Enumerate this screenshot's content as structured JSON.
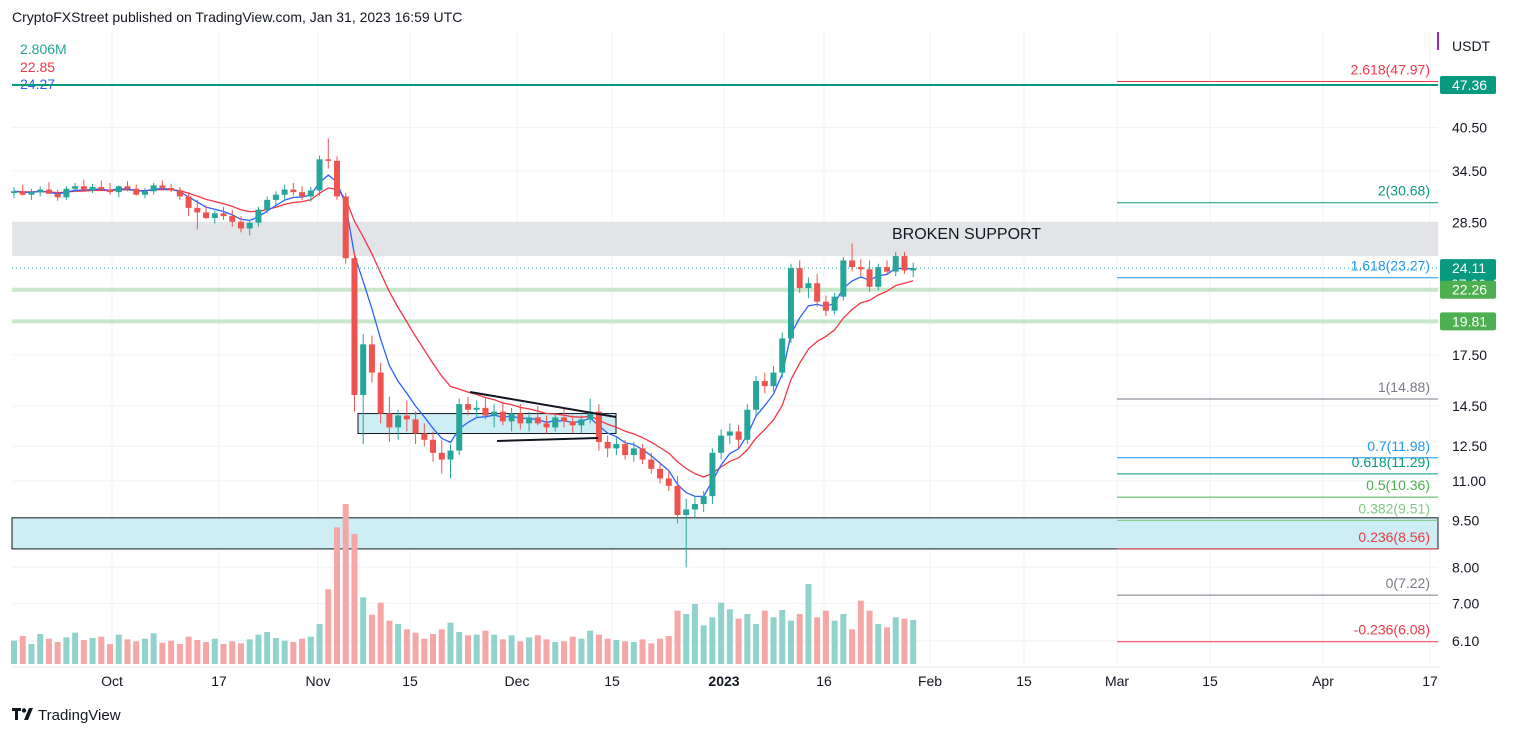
{
  "header": {
    "publisher": "CryptoFXStreet published on TradingView.com, Jan 31, 2023 16:59 UTC"
  },
  "legend": {
    "volume": "2.806M",
    "ma_red": "22.85",
    "ma_blue": "24.27"
  },
  "brand": {
    "name": "TradingView"
  },
  "colors": {
    "up": "#26a69a",
    "down": "#ef5350",
    "vol_up": "#8fd3cc",
    "vol_down": "#f4a7a6",
    "ma_fast": "#2962ff",
    "ma_slow": "#f23645",
    "zone": "#cdeef4",
    "support": "#e1e2e5"
  },
  "chart_data": {
    "type": "candlestick",
    "currency": "USDT",
    "y_scale": "log",
    "ylim": [
      5.6,
      58
    ],
    "y_ticks": [
      "6.10",
      "7.00",
      "8.00",
      "9.50",
      "11.00",
      "12.50",
      "14.50",
      "17.50",
      "28.50",
      "34.50",
      "40.50"
    ],
    "x_ticks": [
      "Oct",
      "17",
      "Nov",
      "15",
      "Dec",
      "15",
      "2023",
      "16",
      "Feb",
      "15",
      "Mar",
      "15",
      "Apr",
      "17"
    ],
    "price_labels": [
      {
        "text": "47.36",
        "value": 47.36,
        "color": "#089981"
      },
      {
        "text": "24.11",
        "value": 24.11,
        "color": "#089981",
        "sub": "07:00:44"
      },
      {
        "text": "22.26",
        "value": 22.26,
        "color": "#4caf50"
      },
      {
        "text": "19.81",
        "value": 19.81,
        "color": "#4caf50"
      }
    ],
    "horizontal_lines": [
      {
        "value": 47.36,
        "color": "#089981"
      }
    ],
    "green_lines": [
      22.26,
      19.81
    ],
    "support_zone": {
      "low": 25.2,
      "high": 28.6,
      "label": "BROKEN SUPPORT"
    },
    "consolidation_box": {
      "low": 13.1,
      "high": 14.1
    },
    "demand_zone": {
      "low": 8.56,
      "high": 9.6
    },
    "fib_levels": [
      {
        "label": "2.618(47.97)",
        "value": 47.97,
        "color": "#f23645"
      },
      {
        "label": "2(30.68)",
        "value": 30.68,
        "color": "#089981"
      },
      {
        "label": "1.618(23.27)",
        "value": 23.27,
        "color": "#2196f3"
      },
      {
        "label": "1(14.88)",
        "value": 14.88,
        "color": "#787b86"
      },
      {
        "label": "0.7(11.98)",
        "value": 11.98,
        "color": "#2196f3"
      },
      {
        "label": "0.618(11.29)",
        "value": 11.29,
        "color": "#089981"
      },
      {
        "label": "0.5(10.36)",
        "value": 10.36,
        "color": "#4caf50"
      },
      {
        "label": "0.382(9.51)",
        "value": 9.51,
        "color": "#81c784"
      },
      {
        "label": "0.236(8.56)",
        "value": 8.56,
        "color": "#f23645"
      },
      {
        "label": "0(7.22)",
        "value": 7.22,
        "color": "#787b86"
      },
      {
        "label": "-0.236(6.08)",
        "value": 6.08,
        "color": "#f23645"
      }
    ],
    "ohlc": [
      [
        31.8,
        32.5,
        31.2,
        32.0
      ],
      [
        32.0,
        32.8,
        31.5,
        31.6
      ],
      [
        31.6,
        32.3,
        31.0,
        31.9
      ],
      [
        31.9,
        32.6,
        31.4,
        32.2
      ],
      [
        32.2,
        33.1,
        31.8,
        31.7
      ],
      [
        31.7,
        32.2,
        30.9,
        31.3
      ],
      [
        31.3,
        32.6,
        31.0,
        32.3
      ],
      [
        32.3,
        33.0,
        31.9,
        32.6
      ],
      [
        32.6,
        33.4,
        32.0,
        32.1
      ],
      [
        32.1,
        32.9,
        31.8,
        32.5
      ],
      [
        32.5,
        33.3,
        32.1,
        32.2
      ],
      [
        32.2,
        33.0,
        31.6,
        31.9
      ],
      [
        31.9,
        32.7,
        31.3,
        32.6
      ],
      [
        32.6,
        33.2,
        32.0,
        32.3
      ],
      [
        32.3,
        32.8,
        31.5,
        31.6
      ],
      [
        31.6,
        32.4,
        31.2,
        32.0
      ],
      [
        32.0,
        33.0,
        31.6,
        32.7
      ],
      [
        32.7,
        33.3,
        32.2,
        32.4
      ],
      [
        32.4,
        32.9,
        31.9,
        32.1
      ],
      [
        32.1,
        32.5,
        31.0,
        31.4
      ],
      [
        31.4,
        31.9,
        29.2,
        30.1
      ],
      [
        30.1,
        31.0,
        27.8,
        29.6
      ],
      [
        29.6,
        30.4,
        28.9,
        29.0
      ],
      [
        29.0,
        29.8,
        28.4,
        29.5
      ],
      [
        29.5,
        30.2,
        28.8,
        29.2
      ],
      [
        29.2,
        29.9,
        28.1,
        28.6
      ],
      [
        28.6,
        29.2,
        27.5,
        27.9
      ],
      [
        27.9,
        28.8,
        27.2,
        28.5
      ],
      [
        28.5,
        30.2,
        28.1,
        29.9
      ],
      [
        29.9,
        31.4,
        29.5,
        31.0
      ],
      [
        31.0,
        32.0,
        30.4,
        31.6
      ],
      [
        31.6,
        32.8,
        31.0,
        32.2
      ],
      [
        32.2,
        33.0,
        31.5,
        31.9
      ],
      [
        31.9,
        32.6,
        31.0,
        31.4
      ],
      [
        31.4,
        32.5,
        30.8,
        32.1
      ],
      [
        32.1,
        36.5,
        31.5,
        36.0
      ],
      [
        36.0,
        38.9,
        34.8,
        35.8
      ],
      [
        35.8,
        36.4,
        31.0,
        31.4
      ],
      [
        31.4,
        31.8,
        24.5,
        25.0
      ],
      [
        25.0,
        25.6,
        14.2,
        15.1
      ],
      [
        15.1,
        18.9,
        12.6,
        18.2
      ],
      [
        18.2,
        18.8,
        15.8,
        16.4
      ],
      [
        16.4,
        17.0,
        13.6,
        14.1
      ],
      [
        14.1,
        15.0,
        12.7,
        13.4
      ],
      [
        13.4,
        14.3,
        12.8,
        14.0
      ],
      [
        14.0,
        14.8,
        13.2,
        13.8
      ],
      [
        13.8,
        14.2,
        12.6,
        13.1
      ],
      [
        13.1,
        13.6,
        12.5,
        12.8
      ],
      [
        12.8,
        13.2,
        11.8,
        12.2
      ],
      [
        12.2,
        12.8,
        11.3,
        11.9
      ],
      [
        11.9,
        12.6,
        11.1,
        12.3
      ],
      [
        12.3,
        14.9,
        12.1,
        14.6
      ],
      [
        14.6,
        15.0,
        14.0,
        14.3
      ],
      [
        14.3,
        14.8,
        13.9,
        14.4
      ],
      [
        14.4,
        14.9,
        13.8,
        14.0
      ],
      [
        14.0,
        14.6,
        13.4,
        14.2
      ],
      [
        14.2,
        14.7,
        13.5,
        13.7
      ],
      [
        13.7,
        14.4,
        13.2,
        14.1
      ],
      [
        14.1,
        14.6,
        13.3,
        13.6
      ],
      [
        13.6,
        14.2,
        13.2,
        13.9
      ],
      [
        13.9,
        14.5,
        13.5,
        13.6
      ],
      [
        13.6,
        14.0,
        13.1,
        13.4
      ],
      [
        13.4,
        14.1,
        13.2,
        13.9
      ],
      [
        13.9,
        14.4,
        13.4,
        13.7
      ],
      [
        13.7,
        14.0,
        13.1,
        13.5
      ],
      [
        13.5,
        14.0,
        13.1,
        13.8
      ],
      [
        13.8,
        14.9,
        13.6,
        14.2
      ],
      [
        14.2,
        14.6,
        12.3,
        12.7
      ],
      [
        12.7,
        13.0,
        12.0,
        12.4
      ],
      [
        12.4,
        12.9,
        12.1,
        12.6
      ],
      [
        12.6,
        12.8,
        11.9,
        12.1
      ],
      [
        12.1,
        12.7,
        11.8,
        12.4
      ],
      [
        12.4,
        12.6,
        11.7,
        11.9
      ],
      [
        11.9,
        12.2,
        11.3,
        11.5
      ],
      [
        11.5,
        11.8,
        10.9,
        11.1
      ],
      [
        11.1,
        11.4,
        10.6,
        10.8
      ],
      [
        10.8,
        11.2,
        9.4,
        9.7
      ],
      [
        9.7,
        10.3,
        8.0,
        9.9
      ],
      [
        9.9,
        10.4,
        9.6,
        10.1
      ],
      [
        10.1,
        10.6,
        9.8,
        10.4
      ],
      [
        10.4,
        12.4,
        10.1,
        12.2
      ],
      [
        12.2,
        13.3,
        11.9,
        13.0
      ],
      [
        13.0,
        13.6,
        12.6,
        13.2
      ],
      [
        13.2,
        13.5,
        12.4,
        12.8
      ],
      [
        12.8,
        14.6,
        12.6,
        14.3
      ],
      [
        14.3,
        16.2,
        14.0,
        15.9
      ],
      [
        15.9,
        16.4,
        15.2,
        15.6
      ],
      [
        15.6,
        16.8,
        15.3,
        16.4
      ],
      [
        16.4,
        19.0,
        16.1,
        18.6
      ],
      [
        18.6,
        24.5,
        18.3,
        24.1
      ],
      [
        24.1,
        24.8,
        22.0,
        22.4
      ],
      [
        22.4,
        23.3,
        21.6,
        22.8
      ],
      [
        22.8,
        23.6,
        20.9,
        21.3
      ],
      [
        21.3,
        21.8,
        20.2,
        20.6
      ],
      [
        20.6,
        22.0,
        20.3,
        21.7
      ],
      [
        21.7,
        25.1,
        21.4,
        24.8
      ],
      [
        24.8,
        26.4,
        23.8,
        24.2
      ],
      [
        24.2,
        24.9,
        23.4,
        24.0
      ],
      [
        24.0,
        24.8,
        22.1,
        22.5
      ],
      [
        22.5,
        24.5,
        22.2,
        24.2
      ],
      [
        24.2,
        24.8,
        23.5,
        23.8
      ],
      [
        23.8,
        25.6,
        23.4,
        25.2
      ],
      [
        25.2,
        25.6,
        23.6,
        23.9
      ],
      [
        23.9,
        24.6,
        23.3,
        24.1
      ]
    ],
    "volume": [
      35,
      42,
      30,
      45,
      38,
      33,
      40,
      47,
      36,
      39,
      41,
      30,
      44,
      37,
      34,
      38,
      46,
      32,
      35,
      30,
      41,
      36,
      33,
      38,
      30,
      34,
      31,
      37,
      44,
      48,
      39,
      35,
      33,
      38,
      41,
      60,
      112,
      205,
      240,
      195,
      100,
      74,
      92,
      65,
      60,
      52,
      47,
      38,
      45,
      52,
      62,
      48,
      43,
      44,
      50,
      44,
      37,
      43,
      34,
      40,
      43,
      37,
      33,
      34,
      41,
      38,
      50,
      44,
      38,
      36,
      34,
      33,
      37,
      31,
      38,
      42,
      80,
      75,
      90,
      58,
      70,
      92,
      82,
      68,
      75,
      60,
      80,
      70,
      81,
      65,
      75,
      120,
      70,
      80,
      65,
      75,
      52,
      95,
      80,
      60,
      55,
      70,
      68,
      66
    ]
  }
}
